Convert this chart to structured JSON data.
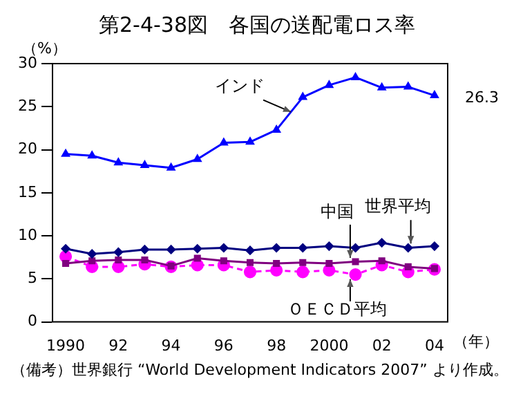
{
  "chart_data": {
    "type": "line",
    "title": "第2-4-38図　各国の送配電ロス率",
    "ylabel": "（%）",
    "xlabel": "（年）",
    "categories": [
      "1990",
      null,
      "92",
      null,
      "94",
      null,
      "96",
      null,
      "98",
      null,
      "2000",
      null,
      "02",
      null,
      "04"
    ],
    "series": [
      {
        "name": "インド",
        "color": "#0000ff",
        "marker": "triangle",
        "line_style": "solid",
        "values": [
          19.5,
          19.3,
          18.5,
          18.2,
          17.9,
          18.9,
          20.8,
          20.9,
          22.3,
          26.1,
          27.5,
          28.4,
          27.2,
          27.3,
          26.3
        ]
      },
      {
        "name": "世界平均",
        "color": "#000080",
        "marker": "diamond",
        "line_style": "solid",
        "values": [
          8.5,
          7.9,
          8.1,
          8.4,
          8.4,
          8.5,
          8.6,
          8.3,
          8.6,
          8.6,
          8.8,
          8.6,
          9.2,
          8.6,
          8.8
        ]
      },
      {
        "name": "中国",
        "color": "#800080",
        "marker": "square",
        "line_style": "solid",
        "values": [
          6.8,
          7.1,
          7.2,
          7.2,
          6.5,
          7.4,
          7.1,
          6.9,
          6.8,
          6.9,
          6.8,
          7.0,
          7.1,
          6.4,
          6.2
        ]
      },
      {
        "name": "ＯＥＣＤ平均",
        "color": "#ff00ff",
        "marker": "circle",
        "line_style": "dashed",
        "values": [
          7.6,
          6.4,
          6.4,
          6.7,
          6.4,
          6.6,
          6.6,
          5.8,
          6.0,
          5.8,
          6.0,
          5.5,
          6.6,
          5.8,
          6.1
        ]
      }
    ],
    "ylim": [
      0,
      30
    ],
    "yticks": [
      0,
      5,
      10,
      15,
      20,
      25,
      30
    ],
    "grid": false,
    "legend": false,
    "annotations": [
      {
        "text": "26.3",
        "x": "04",
        "y": 26.3
      },
      "（備考）世界銀行 “World Development Indicators 2007” より作成。"
    ]
  }
}
